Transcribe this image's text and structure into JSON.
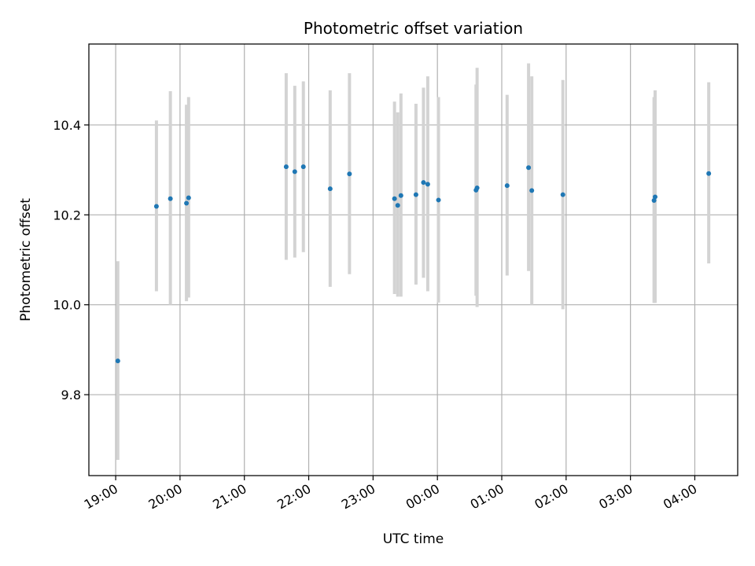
{
  "chart_data": {
    "type": "scatter",
    "title": "Photometric offset variation",
    "xlabel": "UTC time",
    "ylabel": "Photometric offset",
    "grid": true,
    "x_axis": {
      "unit": "UTC time",
      "range": [
        "18:35",
        "04:40"
      ],
      "ticks": [
        "19:00",
        "20:00",
        "21:00",
        "22:00",
        "23:00",
        "00:00",
        "01:00",
        "02:00",
        "03:00",
        "04:00"
      ]
    },
    "y_axis": {
      "range": [
        9.62,
        10.58
      ],
      "ticks": [
        9.8,
        10.0,
        10.2,
        10.4
      ],
      "tick_labels": [
        "9.8",
        "10.0",
        "10.2",
        "10.4"
      ]
    },
    "colors": {
      "point": "#1f77b4",
      "errorbar": "#d3d3d3",
      "grid": "#b0b0b0"
    },
    "series": [
      {
        "points": [
          {
            "t": "19:02",
            "y": 9.875,
            "lo": 9.655,
            "hi": 10.097
          },
          {
            "t": "19:38",
            "y": 10.219,
            "lo": 10.03,
            "hi": 10.41
          },
          {
            "t": "19:51",
            "y": 10.236,
            "lo": 10.0,
            "hi": 10.475
          },
          {
            "t": "20:06",
            "y": 10.226,
            "lo": 10.008,
            "hi": 10.445
          },
          {
            "t": "20:08",
            "y": 10.238,
            "lo": 10.016,
            "hi": 10.462
          },
          {
            "t": "21:39",
            "y": 10.307,
            "lo": 10.1,
            "hi": 10.515
          },
          {
            "t": "21:47",
            "y": 10.296,
            "lo": 10.105,
            "hi": 10.487
          },
          {
            "t": "21:55",
            "y": 10.307,
            "lo": 10.117,
            "hi": 10.497
          },
          {
            "t": "22:20",
            "y": 10.258,
            "lo": 10.04,
            "hi": 10.477
          },
          {
            "t": "22:38",
            "y": 10.291,
            "lo": 10.068,
            "hi": 10.515
          },
          {
            "t": "23:20",
            "y": 10.236,
            "lo": 10.024,
            "hi": 10.452
          },
          {
            "t": "23:23",
            "y": 10.221,
            "lo": 10.018,
            "hi": 10.428
          },
          {
            "t": "23:26",
            "y": 10.243,
            "lo": 10.018,
            "hi": 10.47
          },
          {
            "t": "23:40",
            "y": 10.245,
            "lo": 10.045,
            "hi": 10.447
          },
          {
            "t": "23:47",
            "y": 10.272,
            "lo": 10.06,
            "hi": 10.483
          },
          {
            "t": "23:51",
            "y": 10.268,
            "lo": 10.03,
            "hi": 10.508
          },
          {
            "t": "00:01",
            "y": 10.233,
            "lo": 10.005,
            "hi": 10.462
          },
          {
            "t": "00:36",
            "y": 10.255,
            "lo": 10.02,
            "hi": 10.49
          },
          {
            "t": "00:37",
            "y": 10.26,
            "lo": 9.995,
            "hi": 10.527
          },
          {
            "t": "01:05",
            "y": 10.265,
            "lo": 10.065,
            "hi": 10.467
          },
          {
            "t": "01:25",
            "y": 10.305,
            "lo": 10.075,
            "hi": 10.537
          },
          {
            "t": "01:28",
            "y": 10.254,
            "lo": 10.0,
            "hi": 10.508
          },
          {
            "t": "01:57",
            "y": 10.245,
            "lo": 9.99,
            "hi": 10.5
          },
          {
            "t": "03:22",
            "y": 10.232,
            "lo": 10.004,
            "hi": 10.462
          },
          {
            "t": "03:23",
            "y": 10.24,
            "lo": 10.004,
            "hi": 10.477
          },
          {
            "t": "04:13",
            "y": 10.292,
            "lo": 10.092,
            "hi": 10.495
          }
        ]
      }
    ]
  }
}
